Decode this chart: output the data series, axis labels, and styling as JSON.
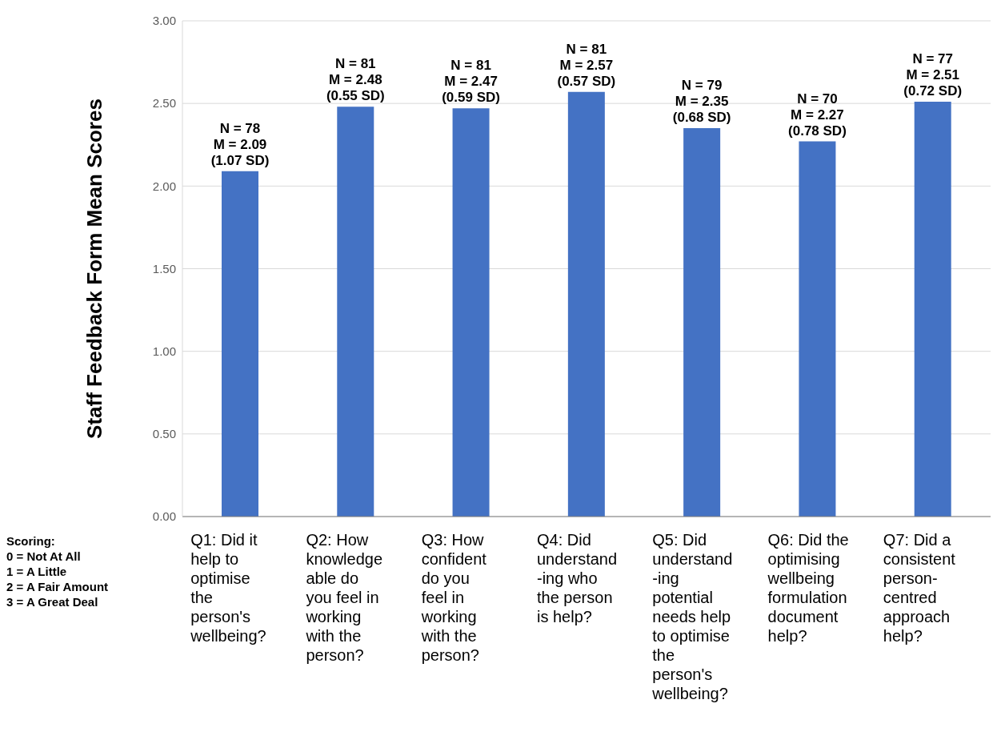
{
  "chart_data": {
    "type": "bar",
    "ylabel": "Staff Feedback Form Mean Scores",
    "categories": [
      "Q1: Did it\nhelp to\noptimise\nthe\nperson's\nwellbeing?",
      "Q2: How\nknowledge\nable do\nyou feel in\nworking\nwith the\nperson?",
      "Q3: How\nconfident\ndo you\nfeel in\nworking\nwith the\nperson?",
      "Q4: Did\nunderstand\n-ing who\nthe person\nis help?",
      "Q5: Did\nunderstand\n-ing\npotential\nneeds help\nto optimise\nthe\nperson's\nwellbeing?",
      "Q6: Did the\noptimising\nwellbeing\nformulation\ndocument\nhelp?",
      "Q7: Did a\nconsistent\nperson-\ncentred\napproach\nhelp?"
    ],
    "values": [
      2.09,
      2.48,
      2.47,
      2.57,
      2.35,
      2.27,
      2.51
    ],
    "value_labels": [
      "N = 78\nM = 2.09\n(1.07 SD)",
      "N = 81\nM = 2.48\n(0.55 SD)",
      "N = 81\nM = 2.47\n(0.59 SD)",
      "N = 81\nM = 2.57\n(0.57 SD)",
      "N = 79\nM = 2.35\n(0.68 SD)",
      "N = 70\nM = 2.27\n(0.78 SD)",
      "N = 77\nM = 2.51\n(0.72 SD)"
    ],
    "color": "#4472c4",
    "ylim": [
      0,
      3
    ],
    "yticks": [
      {
        "value": 0,
        "label": "0.00"
      },
      {
        "value": 0.5,
        "label": "0.50"
      },
      {
        "value": 1,
        "label": "1.00"
      },
      {
        "value": 1.5,
        "label": "1.50"
      },
      {
        "value": 2,
        "label": "2.00"
      },
      {
        "value": 2.5,
        "label": "2.50"
      },
      {
        "value": 3,
        "label": "3.00"
      }
    ],
    "grid": "y",
    "annotations": [
      "Scoring:\n0 = Not At All\n1 = A Little\n2 = A Fair Amount\n3 = A Great Deal"
    ]
  }
}
